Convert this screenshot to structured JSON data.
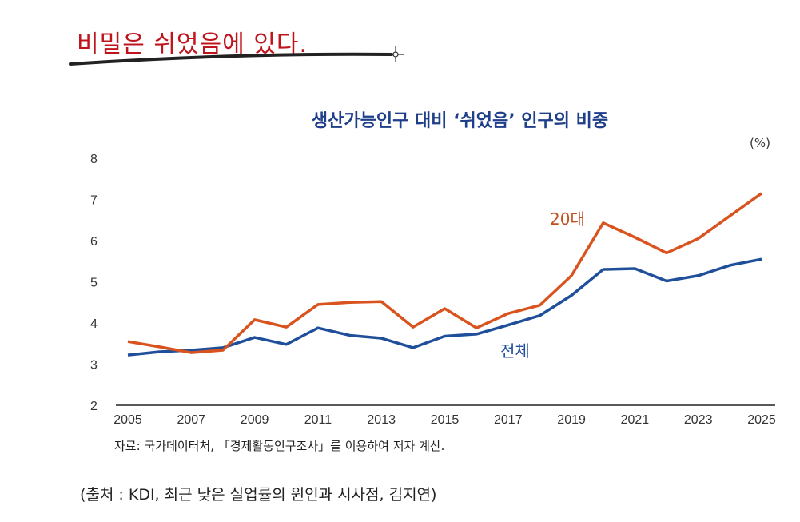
{
  "headline": "비밀은 쉬었음에 있다.",
  "colors": {
    "headline": "#c0141c",
    "title": "#1f3f8a",
    "series_20s": "#d9531e",
    "series_total": "#1f4f9a"
  },
  "chart_data": {
    "type": "line",
    "title": "생산가능인구 대비 ‘쉬었음’ 인구의 비중",
    "unit": "(%)",
    "xlabel": "",
    "ylabel": "",
    "ylim": [
      2,
      8
    ],
    "yticks": [
      "2",
      "3",
      "4",
      "5",
      "6",
      "7",
      "8"
    ],
    "xticks": [
      "2005",
      "2007",
      "2009",
      "2011",
      "2013",
      "2015",
      "2017",
      "2019",
      "2021",
      "2023",
      "2025"
    ],
    "grid": false,
    "x": [
      2005,
      2006,
      2007,
      2008,
      2009,
      2010,
      2011,
      2012,
      2013,
      2014,
      2015,
      2016,
      2017,
      2018,
      2019,
      2020,
      2021,
      2022,
      2023,
      2024,
      2025
    ],
    "series": [
      {
        "name": "20대",
        "values": [
          3.55,
          3.42,
          3.28,
          3.34,
          4.08,
          3.9,
          4.45,
          4.5,
          4.52,
          3.9,
          4.35,
          3.88,
          4.23,
          4.43,
          5.15,
          6.43,
          6.08,
          5.7,
          6.05,
          6.6,
          7.15
        ]
      },
      {
        "name": "전체",
        "values": [
          3.22,
          3.3,
          3.34,
          3.4,
          3.65,
          3.48,
          3.88,
          3.7,
          3.63,
          3.4,
          3.68,
          3.73,
          3.95,
          4.18,
          4.67,
          5.3,
          5.32,
          5.02,
          5.15,
          5.4,
          5.55
        ]
      }
    ]
  },
  "source_note": "자료: 국가데이터처, 「경제활동인구조사」를 이용하여 저자 계산.",
  "citation": "(출처 : KDI, 최근 낮은 실업률의 원인과 시사점, 김지연)"
}
